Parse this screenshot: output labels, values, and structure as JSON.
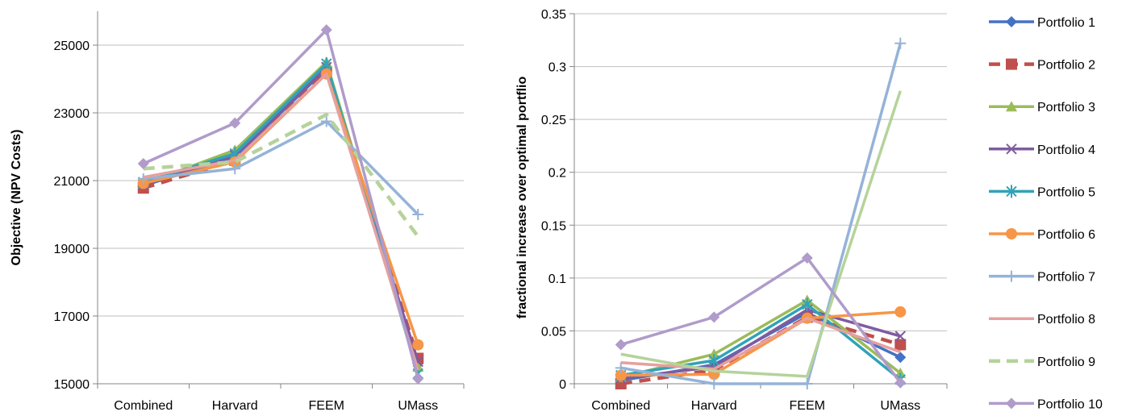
{
  "chart_data": [
    {
      "type": "line",
      "title": "",
      "xlabel": "",
      "ylabel": "Objective (NPV Costs)",
      "categories": [
        "Combined",
        "Harvard",
        "FEEM",
        "UMass"
      ],
      "ylim": [
        15000,
        26000
      ],
      "yticks": [
        15000,
        17000,
        19000,
        21000,
        23000,
        25000
      ],
      "grid": true,
      "series": [
        {
          "name": "Portfolio 1",
          "values": [
            20850,
            21700,
            24300,
            15600
          ]
        },
        {
          "name": "Portfolio 2",
          "values": [
            20780,
            21600,
            24200,
            15750
          ]
        },
        {
          "name": "Portfolio 3",
          "values": [
            20900,
            21900,
            24500,
            15500
          ]
        },
        {
          "name": "Portfolio 4",
          "values": [
            20880,
            21750,
            24350,
            15650
          ]
        },
        {
          "name": "Portfolio 5",
          "values": [
            20950,
            21800,
            24450,
            15300
          ]
        },
        {
          "name": "Portfolio 6",
          "values": [
            20920,
            21550,
            24150,
            16150
          ]
        },
        {
          "name": "Portfolio 7",
          "values": [
            21050,
            21350,
            22750,
            20000
          ]
        },
        {
          "name": "Portfolio 8",
          "values": [
            21100,
            21600,
            24150,
            15400
          ]
        },
        {
          "name": "Portfolio 9",
          "values": [
            21350,
            21550,
            22950,
            19350
          ]
        },
        {
          "name": "Portfolio 10",
          "values": [
            21500,
            22700,
            25450,
            15150
          ]
        }
      ]
    },
    {
      "type": "line",
      "title": "",
      "xlabel": "",
      "ylabel": "fractional increase over optimal portflio",
      "categories": [
        "Combined",
        "Harvard",
        "FEEM",
        "UMass"
      ],
      "ylim": [
        0,
        0.35
      ],
      "yticks": [
        0,
        0.05,
        0.1,
        0.15,
        0.2,
        0.25,
        0.3,
        0.35
      ],
      "grid": true,
      "legend_position": "right",
      "series": [
        {
          "name": "Portfolio 1",
          "values": [
            0.003,
            0.018,
            0.067,
            0.025
          ]
        },
        {
          "name": "Portfolio 2",
          "values": [
            0.0,
            0.013,
            0.063,
            0.037
          ]
        },
        {
          "name": "Portfolio 3",
          "values": [
            0.006,
            0.028,
            0.079,
            0.01
          ]
        },
        {
          "name": "Portfolio 4",
          "values": [
            0.005,
            0.016,
            0.07,
            0.045
          ]
        },
        {
          "name": "Portfolio 5",
          "values": [
            0.008,
            0.022,
            0.075,
            0.004
          ]
        },
        {
          "name": "Portfolio 6",
          "values": [
            0.008,
            0.009,
            0.062,
            0.068
          ]
        },
        {
          "name": "Portfolio 7",
          "values": [
            0.015,
            0.0,
            0.0,
            0.322
          ]
        },
        {
          "name": "Portfolio 8",
          "values": [
            0.02,
            0.014,
            0.062,
            0.03
          ]
        },
        {
          "name": "Portfolio 9",
          "values": [
            0.028,
            0.012,
            0.007,
            0.277
          ]
        },
        {
          "name": "Portfolio 10",
          "values": [
            0.037,
            0.063,
            0.119,
            0.001
          ]
        }
      ]
    }
  ],
  "styles": [
    {
      "color": "#4472C4",
      "marker": "diamond",
      "dash": false
    },
    {
      "color": "#C0504D",
      "marker": "square",
      "dash": true
    },
    {
      "color": "#9BBB59",
      "marker": "triangle",
      "dash": false
    },
    {
      "color": "#7F5BA0",
      "marker": "x",
      "dash": false
    },
    {
      "color": "#31A3B7",
      "marker": "asterisk",
      "dash": false
    },
    {
      "color": "#F79646",
      "marker": "circle",
      "dash": false
    },
    {
      "color": "#95B3D7",
      "marker": "plus",
      "dash": false
    },
    {
      "color": "#E6A0A0",
      "marker": "none",
      "dash": false
    },
    {
      "color": "#B5D39A",
      "marker": "none",
      "dash": true
    },
    {
      "color": "#B09BCB",
      "marker": "diamond",
      "dash": false
    }
  ],
  "right_styles": [
    {
      "dash": false
    },
    {
      "dash": true
    },
    {
      "dash": false
    },
    {
      "dash": false
    },
    {
      "dash": false
    },
    {
      "dash": false
    },
    {
      "dash": false
    },
    {
      "dash": false
    },
    {
      "dash": false
    },
    {
      "dash": false
    }
  ]
}
